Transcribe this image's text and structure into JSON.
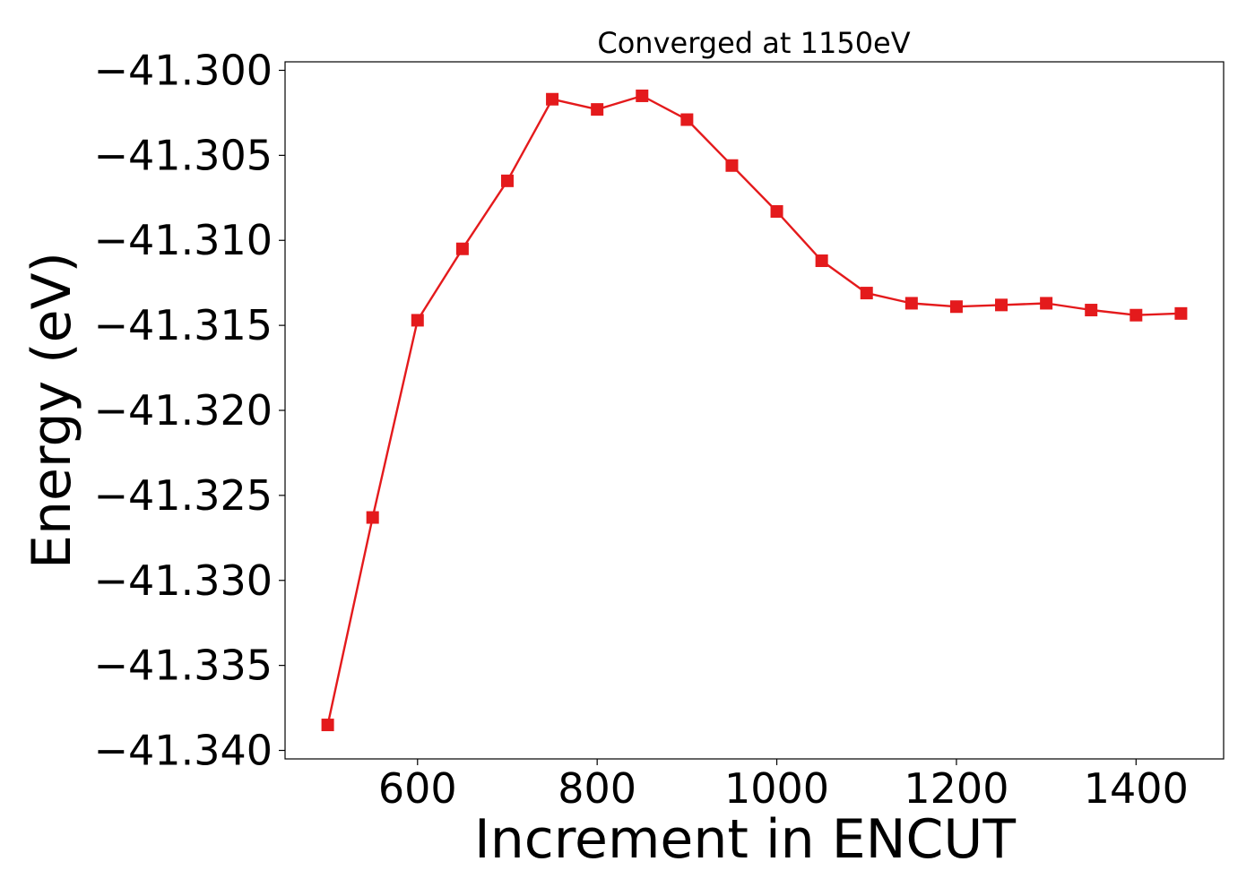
{
  "chart_data": {
    "type": "line",
    "title": "Converged at 1150eV",
    "xlabel": "Increment in ENCUT",
    "ylabel": "Energy (eV)",
    "xlim": [
      452.5,
      1497.5
    ],
    "ylim": [
      -41.3405,
      -41.2995
    ],
    "xticks": [
      600,
      800,
      1000,
      1200,
      1400
    ],
    "xtick_labels": [
      "600",
      "800",
      "1000",
      "1200",
      "1400"
    ],
    "yticks": [
      -41.34,
      -41.335,
      -41.33,
      -41.325,
      -41.32,
      -41.315,
      -41.31,
      -41.305,
      -41.3
    ],
    "ytick_labels": [
      "−41.340",
      "−41.335",
      "−41.330",
      "−41.325",
      "−41.320",
      "−41.315",
      "−41.310",
      "−41.305",
      "−41.300"
    ],
    "grid": false,
    "series": [
      {
        "color": "#e41a1c",
        "marker": "square",
        "x": [
          500,
          550,
          600,
          650,
          700,
          750,
          800,
          850,
          900,
          950,
          1000,
          1050,
          1100,
          1150,
          1200,
          1250,
          1300,
          1350,
          1400,
          1450
        ],
        "y": [
          -41.3385,
          -41.3263,
          -41.3147,
          -41.3105,
          -41.3065,
          -41.3017,
          -41.3023,
          -41.3015,
          -41.3029,
          -41.3056,
          -41.3083,
          -41.3112,
          -41.3131,
          -41.3137,
          -41.3139,
          -41.3138,
          -41.3137,
          -41.3141,
          -41.3144,
          -41.3143
        ]
      }
    ]
  }
}
